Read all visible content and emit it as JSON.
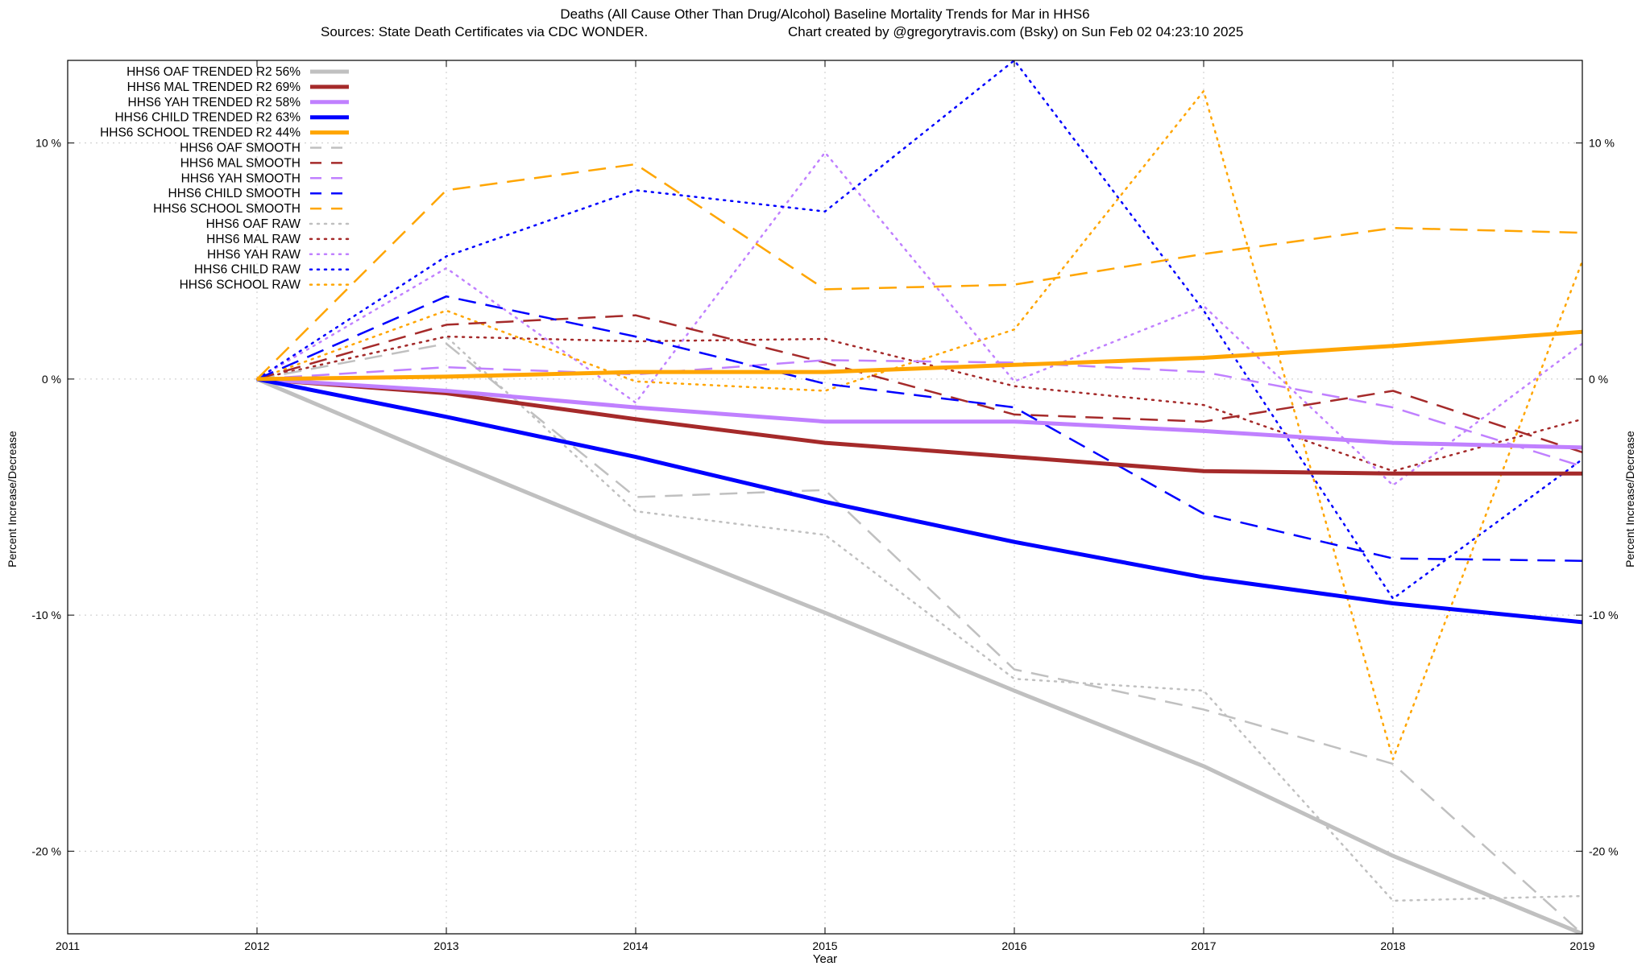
{
  "chart_data": {
    "type": "line",
    "title": "Deaths (All Cause Other Than Drug/Alcohol)  Baseline Mortality Trends for Mar in HHS6",
    "subtitle_left": "Sources: State Death Certificates via CDC WONDER.",
    "subtitle_right": "Chart created by @gregorytravis.com (Bsky) on Sun Feb 02 04:23:10 2025",
    "xlabel": "Year",
    "ylabel_left": "Percent Increase/Decrease",
    "ylabel_right": "Percent Increase/Decrease",
    "xlim": [
      2011,
      2019
    ],
    "ylim": [
      -23.5,
      13.5
    ],
    "x_ticks": [
      "2011",
      "2012",
      "2013",
      "2014",
      "2015",
      "2016",
      "2017",
      "2018",
      "2019"
    ],
    "y_ticks": [
      {
        "value": 10,
        "label": "10 %"
      },
      {
        "value": 0,
        "label": "0 %"
      },
      {
        "value": -10,
        "label": "-10 %"
      },
      {
        "value": -20,
        "label": "-20 %"
      }
    ],
    "grid": true,
    "legend_position": "top-left",
    "x": [
      2012,
      2013,
      2014,
      2015,
      2016,
      2017,
      2018,
      2019
    ],
    "series": [
      {
        "name": "HHS6 OAF TRENDED R2  56%",
        "style": "solid",
        "color": "#c0c0c0",
        "values": [
          0,
          -3.4,
          -6.7,
          -9.9,
          -13.2,
          -16.4,
          -20.2,
          -23.5
        ]
      },
      {
        "name": "HHS6 MAL TRENDED R2  69%",
        "style": "solid",
        "color": "#a52a2a",
        "values": [
          0,
          -0.6,
          -1.7,
          -2.7,
          -3.3,
          -3.9,
          -4.0,
          -4.0
        ]
      },
      {
        "name": "HHS6 YAH TRENDED R2  58%",
        "style": "solid",
        "color": "#c080ff",
        "values": [
          0,
          -0.5,
          -1.2,
          -1.8,
          -1.8,
          -2.2,
          -2.7,
          -2.9
        ]
      },
      {
        "name": "HHS6 CHILD TRENDED R2  63%",
        "style": "solid",
        "color": "#0000ff",
        "values": [
          0,
          -1.6,
          -3.3,
          -5.2,
          -6.9,
          -8.4,
          -9.5,
          -10.3
        ]
      },
      {
        "name": "HHS6 SCHOOL TRENDED R2  44%",
        "style": "solid",
        "color": "#ffa500",
        "values": [
          0,
          0.1,
          0.3,
          0.3,
          0.6,
          0.9,
          1.4,
          2.0
        ]
      },
      {
        "name": "HHS6 OAF SMOOTH",
        "style": "dashed",
        "color": "#c0c0c0",
        "values": [
          0,
          1.5,
          -5.0,
          -4.7,
          -12.3,
          -14.0,
          -16.3,
          -23.5
        ]
      },
      {
        "name": "HHS6 MAL SMOOTH",
        "style": "dashed",
        "color": "#a52a2a",
        "values": [
          0,
          2.3,
          2.7,
          0.7,
          -1.5,
          -1.8,
          -0.5,
          -3.1
        ]
      },
      {
        "name": "HHS6 YAH SMOOTH",
        "style": "dashed",
        "color": "#c080ff",
        "values": [
          0,
          0.5,
          0.2,
          0.8,
          0.7,
          0.3,
          -1.2,
          -3.7
        ]
      },
      {
        "name": "HHS6 CHILD SMOOTH",
        "style": "dashed",
        "color": "#0000ff",
        "values": [
          0,
          3.5,
          1.8,
          -0.2,
          -1.2,
          -5.7,
          -7.6,
          -7.7
        ]
      },
      {
        "name": "HHS6 SCHOOL SMOOTH",
        "style": "dashed",
        "color": "#ffa500",
        "values": [
          0,
          8.0,
          9.1,
          3.8,
          4.0,
          5.3,
          6.4,
          6.2
        ]
      },
      {
        "name": "HHS6 OAF RAW",
        "style": "dotted",
        "color": "#c0c0c0",
        "values": [
          0,
          1.8,
          -5.6,
          -6.6,
          -12.7,
          -13.2,
          -22.1,
          -21.9
        ]
      },
      {
        "name": "HHS6 MAL RAW",
        "style": "dotted",
        "color": "#a52a2a",
        "values": [
          0,
          1.8,
          1.6,
          1.7,
          -0.3,
          -1.1,
          -3.9,
          -1.7
        ]
      },
      {
        "name": "HHS6 YAH RAW",
        "style": "dotted",
        "color": "#c080ff",
        "values": [
          0,
          4.7,
          -1.0,
          9.6,
          -0.1,
          3.1,
          -4.5,
          1.5
        ]
      },
      {
        "name": "HHS6 CHILD RAW",
        "style": "dotted",
        "color": "#0000ff",
        "values": [
          0,
          5.2,
          8.0,
          7.1,
          13.5,
          2.9,
          -9.3,
          -3.4
        ]
      },
      {
        "name": "HHS6 SCHOOL RAW",
        "style": "dotted",
        "color": "#ffa500",
        "values": [
          0,
          2.9,
          -0.1,
          -0.5,
          2.1,
          12.2,
          -16.1,
          5.0
        ]
      }
    ]
  }
}
